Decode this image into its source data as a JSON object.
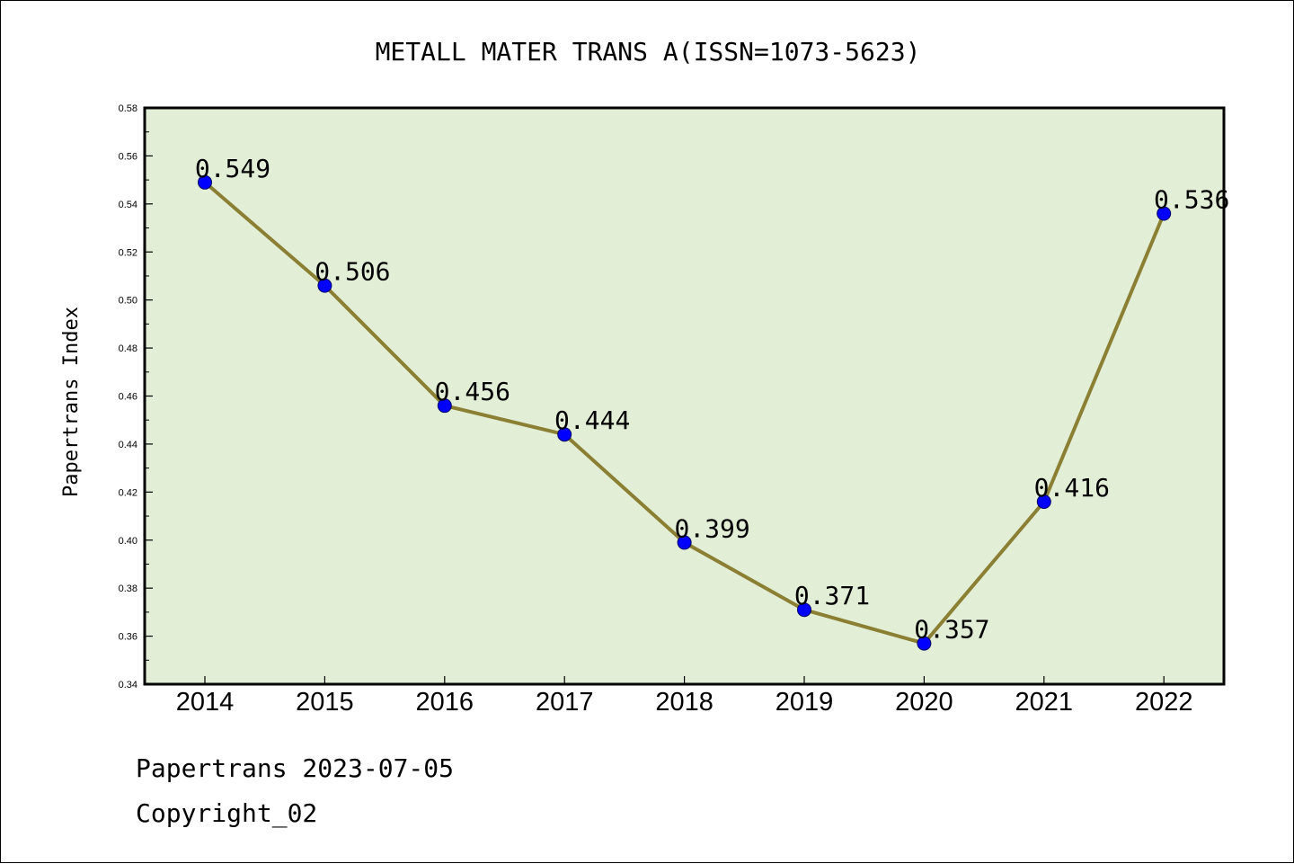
{
  "chart_data": {
    "type": "line",
    "title": "METALL MATER TRANS A(ISSN=1073-5623)",
    "xlabel": "",
    "ylabel": "Papertrans Index",
    "categories": [
      "2014",
      "2015",
      "2016",
      "2017",
      "2018",
      "2019",
      "2020",
      "2021",
      "2022"
    ],
    "values": [
      0.549,
      0.506,
      0.456,
      0.444,
      0.399,
      0.371,
      0.357,
      0.416,
      0.536
    ],
    "data_labels": [
      "0.549",
      "0.506",
      "0.456",
      "0.444",
      "0.399",
      "0.371",
      "0.357",
      "0.416",
      "0.536"
    ],
    "ylim": [
      0.34,
      0.58
    ],
    "yticks": [
      "0.34",
      "0.36",
      "0.38",
      "0.40",
      "0.42",
      "0.44",
      "0.46",
      "0.48",
      "0.50",
      "0.52",
      "0.54",
      "0.56",
      "0.58"
    ],
    "grid": false,
    "legend": "none",
    "colors": {
      "plot_background": "#e2efd6",
      "line": "#8b7f34",
      "marker": "#0000ff",
      "marker_edge": "#000066",
      "axes": "#000000"
    }
  },
  "footer": {
    "line1": "Papertrans 2023-07-05",
    "line2": "Copyright_02"
  }
}
